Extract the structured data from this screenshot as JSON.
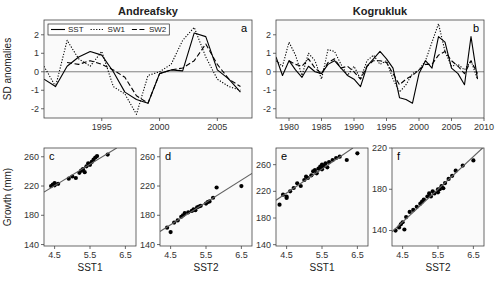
{
  "chart_data": [
    {
      "type": "line",
      "title": "Andreafsky",
      "ylabel": "SD anomalies",
      "annotation": "a",
      "x": [
        1990,
        1991,
        1992,
        1993,
        1994,
        1995,
        1996,
        1997,
        1998,
        1999,
        2000,
        2001,
        2002,
        2003,
        2004,
        2005,
        2006,
        2007
      ],
      "series": [
        {
          "name": "SST",
          "color": "#000000",
          "line_style": "solid",
          "values": [
            -0.4,
            -0.8,
            0.3,
            0.8,
            1.1,
            0.9,
            0.0,
            -1.1,
            -1.5,
            -1.7,
            -0.1,
            0.1,
            0.05,
            2.1,
            1.9,
            0.1,
            -0.4,
            -1.1
          ]
        },
        {
          "name": "SW1",
          "color": "#000000",
          "line_style": "dotted",
          "values": [
            0.3,
            -0.8,
            1.7,
            0.7,
            0.3,
            1.1,
            -0.8,
            -1.2,
            -2.3,
            -0.2,
            0.0,
            0.4,
            1.7,
            2.4,
            0.8,
            -0.4,
            -0.8,
            -1.0
          ]
        },
        {
          "name": "SW2",
          "color": "#000000",
          "line_style": "dashed",
          "values": [
            null,
            null,
            0.5,
            0.4,
            0.6,
            0.4,
            0.1,
            -0.3,
            -1.3,
            -1.7,
            -0.1,
            0.1,
            0.2,
            0.6,
            1.5,
            0.4,
            -0.4,
            -0.8
          ]
        }
      ],
      "xlim": [
        1990,
        2008
      ],
      "xticks": [
        1995,
        2000,
        2005
      ],
      "ylim": [
        -2.5,
        2.8
      ],
      "yticks": [
        -2,
        -1,
        0,
        1,
        2
      ],
      "legend": "upper left",
      "reference_line": {
        "value": 0,
        "color": "#808080"
      }
    },
    {
      "type": "line",
      "title": "Kogrukluk",
      "annotation": "b",
      "x": [
        1978,
        1979,
        1980,
        1981,
        1982,
        1983,
        1984,
        1985,
        1986,
        1987,
        1988,
        1989,
        1990,
        1991,
        1992,
        1993,
        1994,
        1995,
        1996,
        1997,
        1998,
        1999,
        2000,
        2001,
        2002,
        2003,
        2004,
        2005,
        2006,
        2007,
        2008,
        2009
      ],
      "series": [
        {
          "color": "#000000",
          "line_style": "solid",
          "values": [
            0.8,
            -0.2,
            0.6,
            0.1,
            -0.3,
            0.3,
            0.0,
            -0.1,
            0.4,
            0.6,
            0.2,
            -0.2,
            -0.4,
            -0.8,
            0.3,
            0.7,
            1.1,
            0.7,
            0.2,
            -1.4,
            -1.5,
            -1.7,
            -0.1,
            0.6,
            0.2,
            1.9,
            1.6,
            0.2,
            -0.1,
            -0.7,
            1.9,
            -0.4
          ]
        },
        {
          "color": "#000000",
          "line_style": "dotted",
          "values": [
            0.6,
            0.3,
            1.6,
            0.9,
            -0.2,
            1.0,
            0.6,
            -0.4,
            1.2,
            1.1,
            0.4,
            -0.2,
            0.3,
            -0.4,
            0.6,
            0.9,
            0.4,
            0.6,
            -0.4,
            -1.1,
            -0.7,
            -0.1,
            0.1,
            0.6,
            1.6,
            2.6,
            1.1,
            0.3,
            0.4,
            0.1,
            0.6,
            -0.4
          ]
        },
        {
          "color": "#000000",
          "line_style": "dashed",
          "values": [
            null,
            null,
            0.6,
            0.4,
            0.3,
            0.7,
            0.2,
            -0.1,
            0.5,
            0.7,
            0.2,
            0.3,
            0.0,
            -0.4,
            0.3,
            0.6,
            0.6,
            0.5,
            -0.1,
            -0.7,
            -0.4,
            -0.2,
            0.1,
            0.4,
            0.4,
            0.9,
            1.1,
            0.6,
            0.3,
            -0.1,
            0.6,
            -0.1
          ]
        }
      ],
      "xlim": [
        1978,
        2010
      ],
      "xticks": [
        1980,
        1985,
        1990,
        1995,
        2000,
        2005,
        2010
      ],
      "ylim": [
        -2.5,
        2.8
      ],
      "yticks": [
        -2,
        -1,
        0,
        1,
        2
      ],
      "reference_line": {
        "value": 0,
        "color": "#808080"
      }
    },
    {
      "type": "scatter",
      "xlabel": "SST1",
      "ylabel": "Growth (mm)",
      "annotation": "c",
      "series": [
        {
          "color": "#000000",
          "marker": "circle",
          "x": [
            4.4,
            4.45,
            4.5,
            4.5,
            4.6,
            4.9,
            5.0,
            5.1,
            5.2,
            5.25,
            5.3,
            5.35,
            5.4,
            5.45,
            5.5,
            5.55,
            5.6,
            5.65,
            5.7,
            6.0
          ],
          "values": [
            220,
            222,
            221,
            224,
            223,
            230,
            233,
            231,
            238,
            241,
            243,
            239,
            247,
            251,
            249,
            253,
            256,
            259,
            261,
            263
          ]
        },
        {
          "type": "line",
          "color": "#606060",
          "line_style": "solid",
          "x": [
            4.2,
            6.255
          ],
          "values": [
            211.77,
            272
          ]
        }
      ],
      "xlim": [
        4.2,
        6.8
      ],
      "xticks": [
        4.5,
        5.5,
        6.5
      ],
      "ylim": [
        138,
        272
      ],
      "yticks": [
        140,
        180,
        220,
        260
      ]
    },
    {
      "type": "scatter",
      "xlabel": "SST2",
      "annotation": "d",
      "series": [
        {
          "color": "#000000",
          "marker": "circle",
          "x": [
            4.4,
            4.5,
            4.6,
            4.7,
            4.8,
            4.85,
            4.9,
            5.0,
            5.1,
            5.15,
            5.2,
            5.25,
            5.3,
            5.35,
            5.5,
            5.55,
            5.6,
            5.7,
            5.8,
            6.5
          ],
          "values": [
            163,
            157,
            170,
            173,
            178,
            180,
            183,
            184,
            186,
            188,
            187,
            191,
            192,
            193,
            196,
            198,
            199,
            204,
            218,
            220
          ]
        },
        {
          "type": "line",
          "color": "#606060",
          "line_style": "solid",
          "x": [
            4.2,
            6.8
          ],
          "values": [
            157.88,
            237.18
          ]
        }
      ],
      "xlim": [
        4.2,
        6.8
      ],
      "xticks": [
        4.5,
        5.5,
        6.5
      ],
      "ylim": [
        138,
        272
      ],
      "yticks": [
        140,
        180,
        220,
        260
      ]
    },
    {
      "type": "scatter",
      "xlabel": "SST1",
      "annotation": "e",
      "series": [
        {
          "color": "#000000",
          "marker": "circle",
          "x": [
            4.3,
            4.4,
            4.5,
            4.5,
            4.6,
            4.7,
            4.8,
            4.9,
            5.0,
            5.05,
            5.1,
            5.2,
            5.25,
            5.3,
            5.35,
            5.4,
            5.45,
            5.5,
            5.5,
            5.5,
            5.55,
            5.6,
            5.65,
            5.7,
            5.8,
            5.9,
            6.0,
            6.2,
            6.5
          ],
          "values": [
            200,
            215,
            210,
            212,
            220,
            225,
            232,
            228,
            237,
            242,
            240,
            244,
            250,
            252,
            247,
            254,
            257,
            253,
            260,
            255,
            258,
            262,
            256,
            264,
            267,
            270,
            272,
            267,
            277
          ]
        },
        {
          "type": "line",
          "color": "#606060",
          "line_style": "solid",
          "x": [
            4.2,
            6.372
          ],
          "values": [
            206.7,
            285
          ]
        }
      ],
      "xlim": [
        4.2,
        6.8
      ],
      "xticks": [
        4.5,
        5.5,
        6.5
      ],
      "ylim": [
        138,
        285
      ],
      "yticks": [
        140,
        180,
        220,
        260
      ]
    },
    {
      "type": "scatter",
      "xlabel": "SST2",
      "annotation": "f",
      "series": [
        {
          "color": "#000000",
          "marker": "circle",
          "x": [
            4.3,
            4.4,
            4.45,
            4.5,
            4.55,
            4.6,
            4.7,
            4.8,
            4.9,
            5.0,
            5.05,
            5.1,
            5.2,
            5.25,
            5.3,
            5.35,
            5.4,
            5.5,
            5.5,
            5.55,
            5.6,
            5.65,
            5.7,
            5.8,
            5.9,
            6.0,
            6.2,
            6.5
          ],
          "values": [
            140,
            143,
            146,
            148,
            141,
            153,
            158,
            160,
            163,
            166,
            168,
            170,
            173,
            176,
            173,
            178,
            176,
            180,
            177,
            180,
            183,
            181,
            186,
            190,
            193,
            198,
            203,
            208
          ]
        },
        {
          "type": "line",
          "color": "#606060",
          "line_style": "solid",
          "x": [
            4.2,
            6.76
          ],
          "values": [
            138.8,
            220
          ]
        }
      ],
      "xlim": [
        4.2,
        6.8
      ],
      "xticks": [
        4.5,
        5.5,
        6.5
      ],
      "ylim": [
        125,
        220
      ],
      "yticks": [
        140,
        180,
        220
      ]
    }
  ]
}
